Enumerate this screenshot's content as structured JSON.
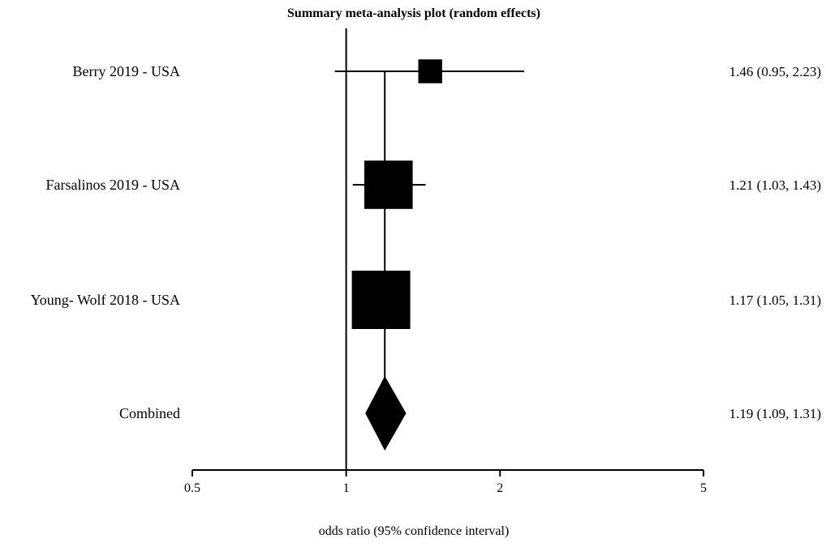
{
  "chart_data": {
    "type": "forest",
    "title": "Summary meta-analysis plot (random effects)",
    "xlabel": "odds ratio (95% confidence interval)",
    "xscale": "log",
    "xlim": [
      0.5,
      5
    ],
    "xticks": [
      0.5,
      1,
      2,
      5
    ],
    "xtick_labels": [
      "0.5",
      "1",
      "2",
      "5"
    ],
    "null_line": 1,
    "pooled_line": 1.19,
    "studies": [
      {
        "label": "Berry 2019 - USA",
        "or": 1.46,
        "lower": 0.95,
        "upper": 2.23,
        "text": "1.46 (0.95, 2.23)",
        "weight": 0.09
      },
      {
        "label": "Farsalinos 2019 - USA",
        "or": 1.21,
        "lower": 1.03,
        "upper": 1.43,
        "text": "1.21 (1.03, 1.43)",
        "weight": 0.37
      },
      {
        "label": "Young- Wolf 2018 - USA",
        "or": 1.17,
        "lower": 1.05,
        "upper": 1.31,
        "text": "1.17 (1.05, 1.31)",
        "weight": 0.54
      }
    ],
    "combined": {
      "label": "Combined",
      "or": 1.19,
      "lower": 1.09,
      "upper": 1.31,
      "text": "1.19 (1.09, 1.31)"
    },
    "colors": {
      "marks": "#000000",
      "background": "#ffffff"
    }
  }
}
